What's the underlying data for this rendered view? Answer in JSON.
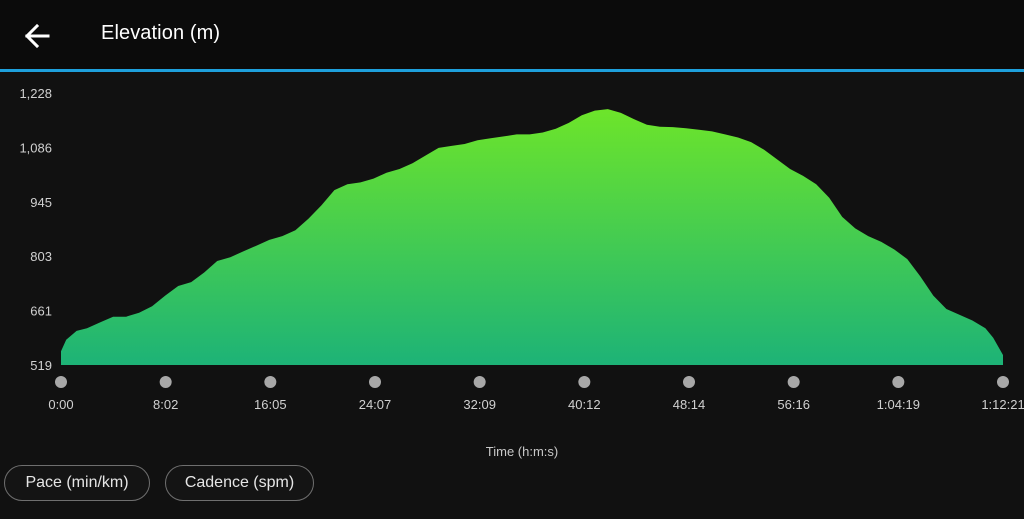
{
  "header": {
    "title": "Elevation (m)",
    "back_icon": "arrow-left-icon"
  },
  "colors": {
    "accent": "#1ea0dc",
    "fill_top": "#6de52a",
    "fill_bottom": "#1db377",
    "background": "#111111",
    "header_bg": "#0b0b0b"
  },
  "chart_data": {
    "type": "area",
    "xlabel": "Time (h:m:s)",
    "ylabel": "",
    "ylim": [
      519,
      1228
    ],
    "y_ticks": [
      "1,228",
      "1,086",
      "945",
      "803",
      "661",
      "519"
    ],
    "x_ticks": [
      "0:00",
      "8:02",
      "16:05",
      "24:07",
      "32:09",
      "40:12",
      "48:14",
      "56:16",
      "1:04:19",
      "1:12:21"
    ],
    "x_unit": "minutes",
    "x_max": 72.35,
    "series": [
      {
        "x": [
          0,
          0.4,
          1.2,
          2.0,
          3.0,
          4.0,
          5.0,
          6.0,
          7.0,
          8.0,
          9.0,
          10.0,
          11.0,
          12.0,
          13.0,
          14.0,
          15.0,
          16.0,
          17.0,
          18.0,
          19.0,
          20.0,
          21.0,
          22.0,
          23.0,
          24.0,
          25.0,
          26.0,
          27.0,
          28.0,
          29.0,
          30.0,
          31.0,
          32.0,
          33.0,
          34.0,
          35.0,
          36.0,
          37.0,
          38.0,
          39.0,
          40.0,
          41.0,
          42.0,
          43.0,
          44.0,
          45.0,
          46.0,
          47.0,
          48.0,
          49.0,
          50.0,
          51.0,
          52.0,
          53.0,
          54.0,
          55.0,
          56.0,
          57.0,
          58.0,
          59.0,
          60.0,
          61.0,
          62.0,
          63.0,
          64.0,
          65.0,
          66.0,
          67.0,
          68.0,
          69.0,
          70.0,
          71.0,
          71.6,
          72.35
        ],
        "values": [
          555,
          585,
          608,
          615,
          630,
          645,
          645,
          655,
          672,
          700,
          725,
          735,
          760,
          790,
          800,
          815,
          830,
          845,
          855,
          870,
          900,
          935,
          975,
          990,
          995,
          1005,
          1020,
          1030,
          1045,
          1065,
          1085,
          1090,
          1095,
          1105,
          1110,
          1115,
          1120,
          1120,
          1125,
          1135,
          1150,
          1170,
          1182,
          1186,
          1176,
          1160,
          1145,
          1140,
          1139,
          1136,
          1132,
          1128,
          1120,
          1112,
          1100,
          1080,
          1055,
          1030,
          1012,
          990,
          955,
          905,
          875,
          855,
          840,
          820,
          795,
          750,
          700,
          665,
          650,
          635,
          615,
          590,
          545
        ]
      }
    ]
  },
  "chips": {
    "pace": "Pace (min/km)",
    "cadence": "Cadence (spm)"
  }
}
